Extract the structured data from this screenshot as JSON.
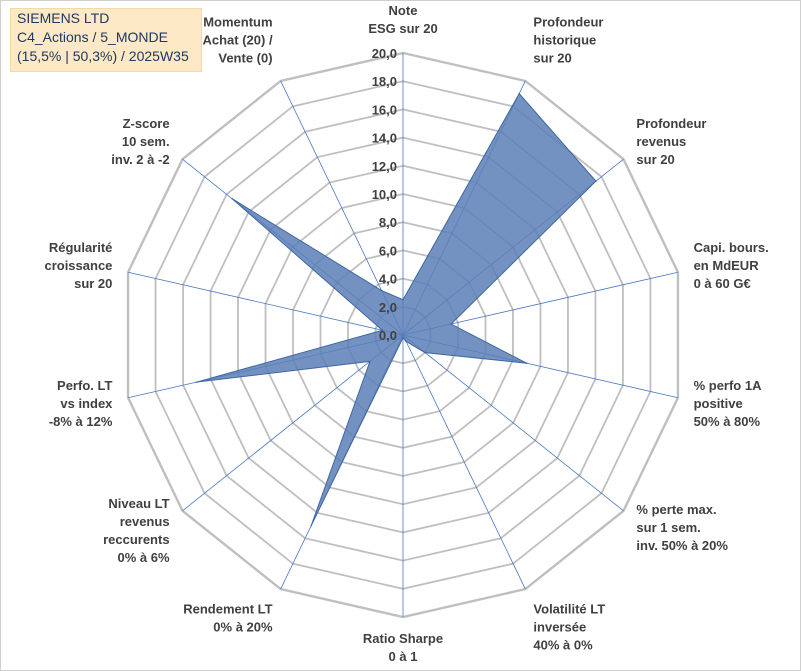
{
  "title_box": {
    "line1": "SIEMENS LTD",
    "line2": "C4_Actions / 5_MONDE",
    "line3": "(15,5% | 50,3%) / 2025W35"
  },
  "chart_data": {
    "type": "radar",
    "title": "",
    "rlim": [
      0,
      20
    ],
    "ticks": [
      "0,0",
      "2,0",
      "4,0",
      "6,0",
      "8,0",
      "10,0",
      "12,0",
      "14,0",
      "16,0",
      "18,0",
      "20,0"
    ],
    "axes": [
      [
        "Note",
        "ESG sur 20"
      ],
      [
        "Profondeur",
        "historique",
        "sur 20"
      ],
      [
        "Profondeur",
        "revenus",
        "sur 20"
      ],
      [
        "Capi. bours.",
        "en MdEUR",
        "0 à 60 G€"
      ],
      [
        "% perfo 1A",
        "positive",
        "50% à 80%"
      ],
      [
        "% perte max.",
        "sur 1 sem.",
        "inv. 50% à 20%"
      ],
      [
        "Volatilité LT",
        "inversée",
        "40% à 0%"
      ],
      [
        "Ratio Sharpe",
        "0 à 1"
      ],
      [
        "Rendement LT",
        "0% à 20%"
      ],
      [
        "Niveau LT",
        "revenus",
        "reccurents",
        "0% à 6%"
      ],
      [
        "Perfo. LT",
        "vs index",
        "-8% à 12%"
      ],
      [
        "Régularité",
        "croissance",
        "sur 20"
      ],
      [
        "Z-score",
        "10 sem.",
        "inv. 2 à -2"
      ],
      [
        "Momentum",
        "Achat (20) /",
        "Vente (0)"
      ]
    ],
    "series": [
      {
        "values": [
          2.5,
          19.0,
          17.5,
          3.5,
          9.0,
          2.0,
          0.5,
          0.2,
          15.0,
          3.0,
          15.0,
          1.5,
          15.5,
          3.5
        ]
      }
    ],
    "colors": {
      "fill": "#5b7fb6",
      "stroke": "#3f67a4",
      "grid": "#bfbfbf",
      "spoke": "#4a78c2"
    },
    "grid": true
  }
}
